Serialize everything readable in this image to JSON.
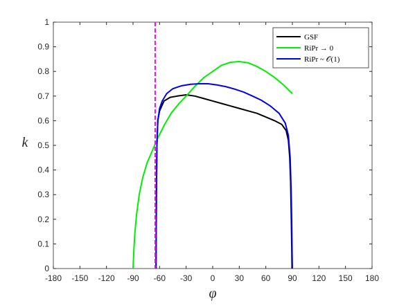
{
  "chart_data": {
    "type": "line",
    "xlabel": "φ",
    "ylabel": "k",
    "xlim": [
      -180,
      180
    ],
    "ylim": [
      0,
      1
    ],
    "xticks": [
      -180,
      -150,
      -120,
      -90,
      -60,
      -30,
      0,
      30,
      60,
      90,
      120,
      150,
      180
    ],
    "yticks": [
      0,
      0.1,
      0.2,
      0.3,
      0.4,
      0.5,
      0.6,
      0.7,
      0.8,
      0.9,
      1
    ],
    "legend": "upper right",
    "series": [
      {
        "name": "GSF",
        "color": "#000000",
        "x": [
          -64,
          -63.6,
          -63,
          -62,
          -60,
          -55,
          -48,
          -40,
          -30,
          -20,
          -10,
          0,
          10,
          20,
          30,
          40,
          50,
          60,
          70,
          78,
          83,
          85.5,
          87,
          88,
          88.8,
          89.3,
          89.6
        ],
        "values": [
          0,
          0.3,
          0.5,
          0.6,
          0.64,
          0.68,
          0.695,
          0.7,
          0.705,
          0.7,
          0.69,
          0.68,
          0.67,
          0.66,
          0.65,
          0.64,
          0.63,
          0.615,
          0.6,
          0.585,
          0.56,
          0.52,
          0.45,
          0.35,
          0.2,
          0.08,
          0
        ]
      },
      {
        "name": "RiPr → 0",
        "color": "#00ee00",
        "x": [
          -90,
          -89,
          -88,
          -86,
          -83,
          -79,
          -74,
          -68,
          -62,
          -55,
          -47,
          -38,
          -30,
          -20,
          -10,
          0,
          10,
          20,
          30,
          40,
          50,
          60,
          70,
          80,
          90
        ],
        "values": [
          0,
          0.08,
          0.14,
          0.22,
          0.3,
          0.37,
          0.43,
          0.48,
          0.53,
          0.58,
          0.63,
          0.67,
          0.7,
          0.74,
          0.775,
          0.8,
          0.825,
          0.837,
          0.84,
          0.835,
          0.82,
          0.8,
          0.775,
          0.745,
          0.71
        ]
      },
      {
        "name": "RiPr ~ 𝒪(1)",
        "color": "#0000ee",
        "x": [
          -64,
          -63.6,
          -63,
          -62,
          -60,
          -57,
          -52,
          -45,
          -35,
          -25,
          -15,
          -5,
          5,
          15,
          25,
          35,
          45,
          55,
          65,
          75,
          82,
          85.5,
          87.5,
          88.6,
          89.3,
          89.7,
          90
        ],
        "values": [
          0,
          0.3,
          0.5,
          0.6,
          0.65,
          0.68,
          0.71,
          0.73,
          0.742,
          0.748,
          0.75,
          0.75,
          0.745,
          0.738,
          0.728,
          0.716,
          0.7,
          0.683,
          0.66,
          0.63,
          0.59,
          0.54,
          0.45,
          0.32,
          0.18,
          0.06,
          0
        ]
      }
    ],
    "reference_lines": [
      {
        "x": -65,
        "color": "#ff00ff"
      }
    ]
  }
}
